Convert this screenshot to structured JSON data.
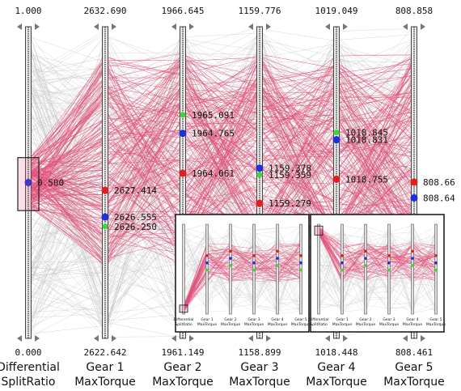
{
  "chart_data": {
    "type": "parallel_coordinates",
    "axes": [
      {
        "name_line1": "Differential",
        "name_line2": "SplitRatio",
        "max": "1.000",
        "min": "0.000"
      },
      {
        "name_line1": "Gear 1",
        "name_line2": "MaxTorque",
        "max": "2632.690",
        "min": "2622.642"
      },
      {
        "name_line1": "Gear 2",
        "name_line2": "MaxTorque",
        "max": "1966.645",
        "min": "1961.149"
      },
      {
        "name_line1": "Gear 3",
        "name_line2": "MaxTorque",
        "max": "1159.776",
        "min": "1158.899"
      },
      {
        "name_line1": "Gear 4",
        "name_line2": "MaxTorque",
        "max": "1019.049",
        "min": "1018.448"
      },
      {
        "name_line1": "Gear 5",
        "name_line2": "MaxTorque",
        "max": "808.858",
        "min": "808.461"
      }
    ],
    "highlighted_points": [
      {
        "axis": 0,
        "value": 0.5,
        "label": "0.500",
        "color": "#2030d8"
      },
      {
        "axis": 1,
        "value": 2627.414,
        "label": "2627.414",
        "color": "#e02020"
      },
      {
        "axis": 1,
        "value": 2626.555,
        "label": "2626.555",
        "color": "#2030d8"
      },
      {
        "axis": 1,
        "value": 2626.25,
        "label": "2626.250",
        "color": "#3ad83a"
      },
      {
        "axis": 2,
        "value": 1965.091,
        "label": "1965.091",
        "color": "#3ad83a"
      },
      {
        "axis": 2,
        "value": 1964.765,
        "label": "1964.765",
        "color": "#2030d8"
      },
      {
        "axis": 2,
        "value": 1964.061,
        "label": "1964.061",
        "color": "#e02020"
      },
      {
        "axis": 3,
        "value": 1159.378,
        "label": "1159.378",
        "color": "#2030d8"
      },
      {
        "axis": 3,
        "value": 1159.359,
        "label": "1159.359",
        "color": "#3ad83a"
      },
      {
        "axis": 3,
        "value": 1159.279,
        "label": "1159.279",
        "color": "#e02020"
      },
      {
        "axis": 4,
        "value": 1018.845,
        "label": "1018.845",
        "color": "#3ad83a"
      },
      {
        "axis": 4,
        "value": 1018.831,
        "label": "1018.831",
        "color": "#2030d8"
      },
      {
        "axis": 4,
        "value": 1018.755,
        "label": "1018.755",
        "color": "#e02020"
      },
      {
        "axis": 5,
        "value": 808.66,
        "label": "808.66",
        "color": "#e02020"
      },
      {
        "axis": 5,
        "value": 808.64,
        "label": "808.64",
        "color": "#2030d8"
      }
    ],
    "brush": {
      "axis": 0,
      "from": 0.41,
      "to": 0.58
    },
    "line_colors": {
      "selected": "#e0507a",
      "unselected": "#c8c8c8"
    },
    "insets": [
      {
        "brush_axis": 0,
        "brush_from": 0.02,
        "brush_to": 0.1
      },
      {
        "brush_axis": 0,
        "brush_from": 0.88,
        "brush_to": 0.98
      }
    ]
  }
}
